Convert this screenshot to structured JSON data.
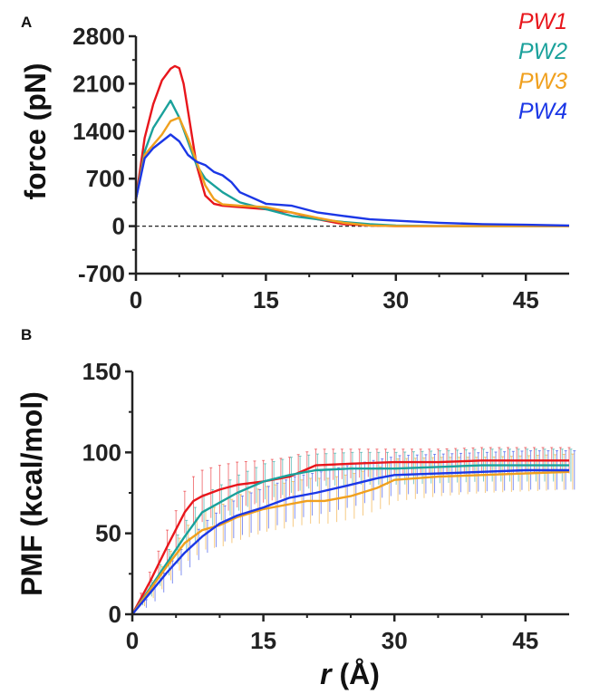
{
  "chart_data": [
    {
      "panel": "A",
      "type": "line",
      "xlabel": "",
      "ylabel": "force (pN)",
      "xlim": [
        0,
        50
      ],
      "ylim": [
        -700,
        2800
      ],
      "xticks": [
        "0",
        "15",
        "30",
        "45"
      ],
      "yticks": [
        "-700",
        "0",
        "700",
        "1400",
        "2100",
        "2800"
      ],
      "zero_reference_line": "dashed",
      "legend": "top-right",
      "series": [
        {
          "name": "PW1",
          "color": "#e8161c",
          "x": [
            0,
            1,
            2,
            3,
            4,
            4.5,
            5,
            5.5,
            6,
            7,
            8,
            9,
            10,
            12,
            15,
            18,
            21,
            24,
            27,
            30,
            35,
            40,
            45,
            50
          ],
          "y": [
            400,
            1300,
            1800,
            2150,
            2320,
            2360,
            2330,
            2100,
            1700,
            900,
            450,
            330,
            300,
            280,
            250,
            200,
            100,
            30,
            10,
            0,
            0,
            0,
            0,
            0
          ]
        },
        {
          "name": "PW2",
          "color": "#1aa19b",
          "x": [
            0,
            1,
            2,
            3,
            4,
            5,
            6,
            7,
            8,
            9,
            10,
            12,
            15,
            18,
            21,
            24,
            27,
            30,
            35,
            40,
            45,
            50
          ],
          "y": [
            400,
            1100,
            1450,
            1650,
            1850,
            1600,
            1250,
            900,
            700,
            600,
            500,
            350,
            250,
            150,
            100,
            60,
            30,
            10,
            0,
            0,
            0,
            0
          ]
        },
        {
          "name": "PW3",
          "color": "#f0a01e",
          "x": [
            0,
            1,
            2,
            3,
            4,
            5,
            6,
            7,
            8,
            9,
            10,
            12,
            15,
            18,
            21,
            24,
            27,
            30,
            35,
            40,
            45,
            50
          ],
          "y": [
            400,
            1050,
            1200,
            1350,
            1550,
            1600,
            1300,
            950,
            600,
            400,
            320,
            300,
            280,
            200,
            120,
            50,
            10,
            0,
            0,
            0,
            0,
            0
          ]
        },
        {
          "name": "PW4",
          "color": "#1b37e6",
          "x": [
            0,
            1,
            2,
            3,
            4,
            5,
            6,
            7,
            8,
            9,
            10,
            11,
            12,
            15,
            18,
            21,
            24,
            27,
            30,
            35,
            40,
            45,
            50
          ],
          "y": [
            400,
            1000,
            1150,
            1250,
            1350,
            1250,
            1050,
            950,
            900,
            800,
            750,
            650,
            500,
            330,
            300,
            200,
            150,
            100,
            80,
            50,
            30,
            20,
            10
          ]
        }
      ]
    },
    {
      "panel": "B",
      "type": "line",
      "xlabel": "r (Å)",
      "ylabel": "PMF (kcal/mol)",
      "xlim": [
        0,
        50
      ],
      "ylim": [
        0,
        150
      ],
      "xticks": [
        "0",
        "15",
        "30",
        "45"
      ],
      "yticks": [
        "0",
        "50",
        "100",
        "150"
      ],
      "error_bars": true,
      "series": [
        {
          "name": "PW1",
          "color": "#e8161c",
          "x": [
            0,
            2,
            4,
            6,
            7,
            8,
            10,
            12,
            15,
            18,
            21,
            25,
            30,
            35,
            40,
            45,
            50
          ],
          "y": [
            0,
            20,
            42,
            63,
            70,
            73,
            77,
            80,
            82,
            85,
            92,
            93,
            94,
            94,
            95,
            95,
            95
          ],
          "err": [
            0,
            6,
            10,
            13,
            15,
            16,
            15,
            14,
            13,
            12,
            10,
            9,
            8,
            8,
            8,
            8,
            8
          ]
        },
        {
          "name": "PW2",
          "color": "#1aa19b",
          "x": [
            0,
            2,
            4,
            6,
            8,
            10,
            12,
            15,
            18,
            21,
            25,
            30,
            35,
            40,
            45,
            50
          ],
          "y": [
            0,
            16,
            32,
            48,
            63,
            69,
            75,
            82,
            86,
            89,
            90,
            90,
            91,
            92,
            92,
            92
          ],
          "err": [
            0,
            5,
            8,
            10,
            11,
            11,
            11,
            11,
            11,
            10,
            10,
            10,
            10,
            10,
            10,
            10
          ]
        },
        {
          "name": "PW3",
          "color": "#f0a01e",
          "x": [
            0,
            2,
            4,
            6,
            8,
            10,
            12,
            15,
            18,
            20,
            22,
            25,
            28,
            30,
            35,
            40,
            45,
            50
          ],
          "y": [
            0,
            15,
            30,
            44,
            52,
            55,
            60,
            65,
            68,
            70,
            70,
            73,
            78,
            83,
            85,
            86,
            87,
            88
          ],
          "err": [
            0,
            5,
            9,
            11,
            12,
            13,
            14,
            14,
            14,
            14,
            14,
            14,
            13,
            13,
            12,
            11,
            11,
            11
          ]
        },
        {
          "name": "PW4",
          "color": "#1b37e6",
          "x": [
            0,
            2,
            4,
            6,
            8,
            10,
            12,
            15,
            18,
            21,
            25,
            28,
            30,
            35,
            40,
            45,
            50
          ],
          "y": [
            0,
            13,
            26,
            38,
            48,
            56,
            61,
            66,
            72,
            75,
            80,
            84,
            86,
            87,
            88,
            89,
            89
          ],
          "err": [
            0,
            5,
            7,
            9,
            10,
            11,
            12,
            13,
            13,
            13,
            13,
            12,
            12,
            12,
            12,
            12,
            12
          ]
        }
      ]
    }
  ]
}
